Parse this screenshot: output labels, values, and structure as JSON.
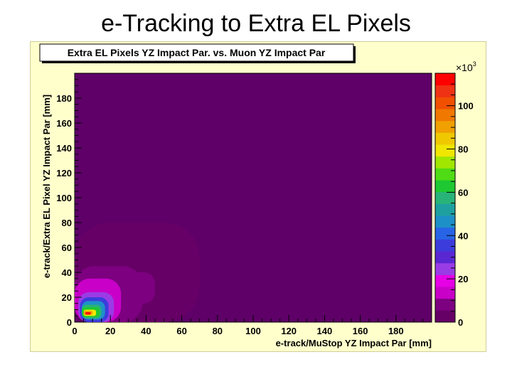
{
  "slide": {
    "title": "e-Tracking to Extra EL Pixels"
  },
  "chart_data": {
    "type": "heatmap",
    "title": "Extra EL Pixels YZ Impact Par. vs. Muon YZ Impact Par",
    "xlabel": "e-track/MuStop YZ Impact Par [mm]",
    "ylabel": "e-track/Extra EL Pixel YZ Impact Par [mm]",
    "xlim": [
      0,
      200
    ],
    "ylim": [
      0,
      200
    ],
    "x_ticks": [
      0,
      20,
      40,
      60,
      80,
      100,
      120,
      140,
      160,
      180
    ],
    "y_ticks": [
      0,
      20,
      40,
      60,
      80,
      100,
      120,
      140,
      160,
      180
    ],
    "z_range": [
      0,
      115
    ],
    "z_ticks": [
      0,
      20,
      40,
      60,
      80,
      100
    ],
    "z_multiplier": "×10",
    "z_multiplier_exp": "3",
    "background_color": "#5e0068",
    "palette": [
      "#660066",
      "#7d0080",
      "#c800c8",
      "#e600e6",
      "#9a3ce6",
      "#5a28d2",
      "#3c3cdc",
      "#2864e6",
      "#1e90c8",
      "#1ea0a0",
      "#28b478",
      "#1ec832",
      "#50dc14",
      "#a0e600",
      "#f0e600",
      "#f0c800",
      "#f0a000",
      "#f07800",
      "#f05000",
      "#f03214",
      "#ff0000"
    ],
    "cells": [
      {
        "x": [
          0,
          70
        ],
        "y": [
          0,
          80
        ],
        "z": 2
      },
      {
        "x": [
          8,
          58
        ],
        "y": [
          8,
          70
        ],
        "z": 4
      },
      {
        "x": [
          20,
          45
        ],
        "y": [
          15,
          40
        ],
        "z": 8
      },
      {
        "x": [
          0,
          38
        ],
        "y": [
          0,
          45
        ],
        "z": 10
      },
      {
        "x": [
          0,
          26
        ],
        "y": [
          0,
          35
        ],
        "z": 15
      },
      {
        "x": [
          2,
          22
        ],
        "y": [
          0,
          24
        ],
        "z": 25
      },
      {
        "x": [
          3,
          19
        ],
        "y": [
          0,
          20
        ],
        "z": 35
      },
      {
        "x": [
          4,
          17
        ],
        "y": [
          2,
          17
        ],
        "z": 45
      },
      {
        "x": [
          4,
          15
        ],
        "y": [
          3,
          14
        ],
        "z": 55
      },
      {
        "x": [
          4,
          14
        ],
        "y": [
          4,
          12
        ],
        "z": 65
      },
      {
        "x": [
          5,
          12
        ],
        "y": [
          5,
          10
        ],
        "z": 78
      },
      {
        "x": [
          5,
          10
        ],
        "y": [
          6,
          9
        ],
        "z": 92
      },
      {
        "x": [
          6,
          9
        ],
        "y": [
          6,
          8
        ],
        "z": 110
      }
    ]
  }
}
